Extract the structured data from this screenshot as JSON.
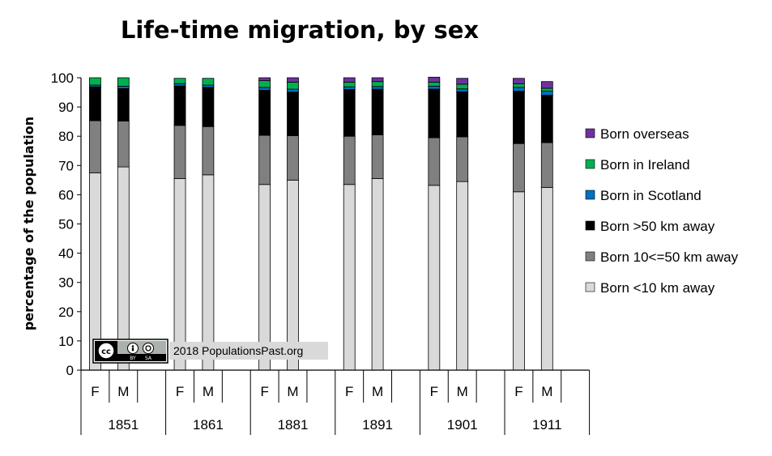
{
  "chart_data": {
    "type": "bar",
    "stacked": true,
    "title": "Life-time migration, by sex",
    "ylabel": "percentage of the population",
    "xlabel": "",
    "ylim": [
      0,
      100
    ],
    "yticks": [
      0,
      10,
      20,
      30,
      40,
      50,
      60,
      70,
      80,
      90,
      100
    ],
    "grid": false,
    "legend_position": "right",
    "groups": [
      "1851",
      "1861",
      "1881",
      "1891",
      "1901",
      "1911"
    ],
    "subcategories": [
      "F",
      "M"
    ],
    "series": [
      {
        "name": "Born <10 km away",
        "color": "#d9d9d9",
        "values": [
          67.5,
          69.5,
          65.5,
          66.8,
          63.5,
          65,
          63.5,
          65.5,
          63.2,
          64.5,
          61,
          62.5
        ]
      },
      {
        "name": "Born 10<=50 km away",
        "color": "#808080",
        "values": [
          17.8,
          15.7,
          18.2,
          16.5,
          16.8,
          15.2,
          16.5,
          15,
          16.3,
          15.3,
          16.5,
          15.3
        ]
      },
      {
        "name": "Born >50 km away",
        "color": "#000000",
        "values": [
          11.6,
          11.1,
          13.5,
          13.4,
          15.4,
          14.9,
          16,
          15.6,
          16.6,
          15.4,
          17.9,
          16.2
        ]
      },
      {
        "name": "Born in Scotland",
        "color": "#0070c0",
        "values": [
          0.6,
          0.8,
          0.8,
          0.8,
          1.0,
          1.0,
          0.9,
          0.9,
          1.0,
          1.0,
          1.3,
          1.4
        ]
      },
      {
        "name": "Born in Ireland",
        "color": "#00b050",
        "values": [
          2.5,
          2.9,
          1.8,
          2.3,
          2.3,
          2.4,
          1.6,
          1.7,
          1.4,
          1.6,
          1.2,
          1.0
        ]
      },
      {
        "name": "Born overseas",
        "color": "#7030a0",
        "values": [
          0,
          0,
          0,
          0,
          1.0,
          1.5,
          1.5,
          1.3,
          1.7,
          2.0,
          1.9,
          2.3
        ]
      }
    ]
  },
  "watermark": {
    "text": "2018 PopulationsPast.org",
    "cc_text": "cc",
    "by_text": "BY",
    "sa_text": "SA"
  }
}
